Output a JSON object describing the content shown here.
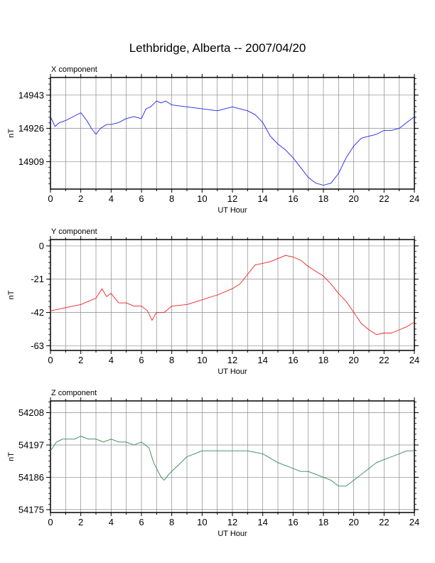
{
  "title": "Lethbridge, Alberta -- 2007/04/20",
  "chart_data": [
    {
      "type": "line",
      "title": "X component",
      "xlabel": "UT Hour",
      "ylabel": "nT",
      "xlim": [
        0,
        24
      ],
      "ylim": [
        14895,
        14952
      ],
      "xticks": [
        0,
        2,
        4,
        6,
        8,
        10,
        12,
        14,
        16,
        18,
        20,
        22,
        24
      ],
      "yticks": [
        14909,
        14926,
        14943
      ],
      "grid": true,
      "color": "#2222ee",
      "x": [
        0,
        0.3,
        0.6,
        1.0,
        1.5,
        2.0,
        2.4,
        2.7,
        3.0,
        3.3,
        3.7,
        4.0,
        4.5,
        5.0,
        5.5,
        6.0,
        6.3,
        6.6,
        7.0,
        7.3,
        7.6,
        8.0,
        9.0,
        10.0,
        11.0,
        12.0,
        12.5,
        13.0,
        13.5,
        14.0,
        14.5,
        15.0,
        15.5,
        16.0,
        16.5,
        17.0,
        17.5,
        18.0,
        18.5,
        19.0,
        19.5,
        20.0,
        20.5,
        21.0,
        21.5,
        22.0,
        22.5,
        23.0,
        23.5,
        24.0
      ],
      "values": [
        14932,
        14927,
        14929,
        14930,
        14932,
        14934,
        14930,
        14926,
        14923,
        14926,
        14928,
        14928,
        14929,
        14931,
        14932,
        14931,
        14936,
        14937,
        14940,
        14939,
        14940,
        14938,
        14937,
        14936,
        14935,
        14937,
        14936,
        14935,
        14933,
        14929,
        14922,
        14918,
        14915,
        14911,
        14906,
        14901,
        14898,
        14897,
        14898,
        14903,
        14911,
        14917,
        14921,
        14922,
        14923,
        14925,
        14925,
        14926,
        14929,
        14932
      ]
    },
    {
      "type": "line",
      "title": "Y component",
      "xlabel": "UT Hour",
      "ylabel": "nT",
      "xlim": [
        0,
        24
      ],
      "ylim": [
        -66,
        4
      ],
      "xticks": [
        0,
        2,
        4,
        6,
        8,
        10,
        12,
        14,
        16,
        18,
        20,
        22,
        24
      ],
      "yticks": [
        -63,
        -42,
        -21,
        0
      ],
      "grid": true,
      "color": "#ee2222",
      "x": [
        0,
        0.5,
        1.0,
        1.5,
        2.0,
        2.5,
        3.0,
        3.4,
        3.7,
        4.0,
        4.5,
        5.0,
        5.5,
        6.0,
        6.4,
        6.7,
        7.0,
        7.5,
        8.0,
        9.0,
        10.0,
        11.0,
        12.0,
        12.5,
        13.0,
        13.5,
        14.0,
        14.5,
        15.0,
        15.5,
        16.0,
        16.5,
        17.0,
        17.5,
        18.0,
        18.5,
        19.0,
        19.5,
        20.0,
        20.5,
        21.0,
        21.5,
        22.0,
        22.5,
        23.0,
        23.5,
        24.0
      ],
      "values": [
        -41,
        -40,
        -39,
        -38,
        -37,
        -35,
        -33,
        -27,
        -32,
        -30,
        -36,
        -36,
        -38,
        -38,
        -41,
        -47,
        -42,
        -42,
        -38,
        -37,
        -34,
        -31,
        -27,
        -24,
        -18,
        -12,
        -11,
        -10,
        -8,
        -6,
        -7,
        -9,
        -13,
        -16,
        -19,
        -24,
        -30,
        -35,
        -42,
        -49,
        -53,
        -56,
        -55,
        -55,
        -53,
        -51,
        -48
      ]
    },
    {
      "type": "line",
      "title": "Z component",
      "xlabel": "UT Hour",
      "ylabel": "nT",
      "xlim": [
        0,
        24
      ],
      "ylim": [
        54174,
        54212
      ],
      "xticks": [
        0,
        2,
        4,
        6,
        8,
        10,
        12,
        14,
        16,
        18,
        20,
        22,
        24
      ],
      "yticks": [
        54175,
        54186,
        54197,
        54208
      ],
      "grid": true,
      "color": "#338855",
      "x": [
        0,
        0.4,
        0.8,
        1.2,
        1.6,
        2.0,
        2.5,
        3.0,
        3.5,
        4.0,
        4.5,
        5.0,
        5.5,
        6.0,
        6.5,
        6.8,
        7.0,
        7.3,
        7.5,
        7.8,
        8.2,
        8.6,
        9.0,
        9.5,
        10.0,
        11.0,
        12.0,
        13.0,
        14.0,
        15.0,
        15.5,
        16.0,
        16.5,
        17.0,
        17.5,
        18.0,
        18.5,
        19.0,
        19.5,
        20.0,
        20.5,
        21.0,
        21.5,
        22.0,
        22.5,
        23.0,
        23.5,
        24.0
      ],
      "values": [
        54195,
        54198,
        54199,
        54199,
        54199,
        54200,
        54199,
        54199,
        54198,
        54199,
        54198,
        54198,
        54197,
        54198,
        54196,
        54191,
        54189,
        54186,
        54185,
        54187,
        54189,
        54191,
        54193,
        54194,
        54195,
        54195,
        54195,
        54195,
        54194,
        54191,
        54190,
        54189,
        54188,
        54188,
        54187,
        54186,
        54185,
        54183,
        54183,
        54185,
        54187,
        54189,
        54191,
        54192,
        54193,
        54194,
        54195,
        54195
      ]
    }
  ]
}
